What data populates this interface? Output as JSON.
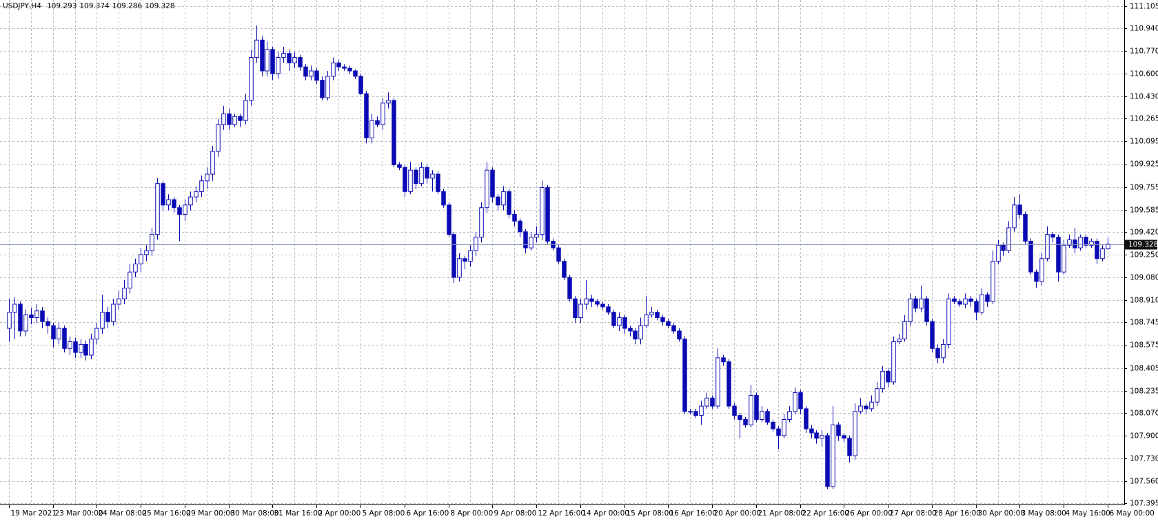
{
  "chart_data": {
    "type": "candlestick",
    "title": "USDJPY,H4",
    "color": "#0a0ab4",
    "grid": true,
    "ylim": [
      107.386,
      111.149
    ],
    "yticks": [
      111.105,
      {
        "value": 110.94,
        "label": "110.940"
      },
      {
        "value": 110.77,
        "label": "110.770"
      },
      {
        "value": 110.6,
        "label": "110.600"
      },
      {
        "value": 110.43,
        "label": "110.430"
      },
      110.265,
      110.095,
      109.925,
      109.755,
      109.585,
      {
        "value": 109.42,
        "label": "109.420"
      },
      {
        "value": 109.25,
        "label": "109.250"
      },
      {
        "value": 109.08,
        "label": "109.080"
      },
      {
        "value": 108.91,
        "label": "108.910"
      },
      108.745,
      108.575,
      108.405,
      108.235,
      {
        "value": 108.07,
        "label": "108.070"
      },
      {
        "value": 107.9,
        "label": "107.900"
      },
      {
        "value": 107.73,
        "label": "107.730"
      },
      {
        "value": 107.56,
        "label": "107.560"
      },
      107.395
    ],
    "categories": [
      "19 Mar 2021",
      null,
      null,
      null,
      null,
      null,
      null,
      null,
      "23 Mar 00:00",
      null,
      null,
      null,
      null,
      null,
      null,
      null,
      "24 Mar 08:00",
      null,
      null,
      null,
      null,
      null,
      null,
      null,
      "25 Mar 16:00",
      null,
      null,
      null,
      null,
      null,
      null,
      null,
      "29 Mar 00:00",
      null,
      null,
      null,
      null,
      null,
      null,
      null,
      "30 Mar 08:00",
      null,
      null,
      null,
      null,
      null,
      null,
      null,
      "31 Mar 16:00",
      null,
      null,
      null,
      null,
      null,
      null,
      null,
      "2 Apr 00:00",
      null,
      null,
      null,
      null,
      null,
      null,
      null,
      "5 Apr 08:00",
      null,
      null,
      null,
      null,
      null,
      null,
      null,
      "6 Apr 16:00",
      null,
      null,
      null,
      null,
      null,
      null,
      null,
      "8 Apr 00:00",
      null,
      null,
      null,
      null,
      null,
      null,
      null,
      "9 Apr 08:00",
      null,
      null,
      null,
      null,
      null,
      null,
      null,
      "12 Apr 16:00",
      null,
      null,
      null,
      null,
      null,
      null,
      null,
      "14 Apr 00:00",
      null,
      null,
      null,
      null,
      null,
      null,
      null,
      "15 Apr 08:00",
      null,
      null,
      null,
      null,
      null,
      null,
      null,
      "16 Apr 16:00",
      null,
      null,
      null,
      null,
      null,
      null,
      null,
      "20 Apr 00:00",
      null,
      null,
      null,
      null,
      null,
      null,
      null,
      "21 Apr 08:00",
      null,
      null,
      null,
      null,
      null,
      null,
      null,
      "22 Apr 16:00",
      null,
      null,
      null,
      null,
      null,
      null,
      null,
      "26 Apr 00:00",
      null,
      null,
      null,
      null,
      null,
      null,
      null,
      "27 Apr 08:00",
      null,
      null,
      null,
      null,
      null,
      null,
      null,
      "28 Apr 16:00",
      null,
      null,
      null,
      null,
      null,
      null,
      null,
      "30 Apr 00:00",
      null,
      null,
      null,
      null,
      null,
      null,
      null,
      "3 May 08:00",
      null,
      null,
      null,
      null,
      null,
      null,
      null,
      "4 May 16:00",
      null,
      null,
      null,
      null,
      null,
      null,
      null,
      "6 May 00:00"
    ],
    "ohlc": [
      [
        108.7,
        108.92,
        108.6,
        108.82
      ],
      [
        108.82,
        108.93,
        108.62,
        108.88
      ],
      [
        108.88,
        108.9,
        108.64,
        108.68
      ],
      [
        108.68,
        108.84,
        108.64,
        108.8
      ],
      [
        108.8,
        108.85,
        108.73,
        108.78
      ],
      [
        108.78,
        108.88,
        108.74,
        108.83
      ],
      [
        108.83,
        108.86,
        108.7,
        108.75
      ],
      [
        108.75,
        108.78,
        108.66,
        108.72
      ],
      [
        108.72,
        108.74,
        108.56,
        108.62
      ],
      [
        108.62,
        108.74,
        108.58,
        108.7
      ],
      [
        108.7,
        108.72,
        108.52,
        108.55
      ],
      [
        108.55,
        108.64,
        108.5,
        108.6
      ],
      [
        108.6,
        108.63,
        108.48,
        108.52
      ],
      [
        108.52,
        108.62,
        108.48,
        108.58
      ],
      [
        108.58,
        108.61,
        108.46,
        108.5
      ],
      [
        108.5,
        108.66,
        108.47,
        108.62
      ],
      [
        108.62,
        108.74,
        108.58,
        108.7
      ],
      [
        108.7,
        108.95,
        108.66,
        108.82
      ],
      [
        108.82,
        108.86,
        108.7,
        108.75
      ],
      [
        108.75,
        108.92,
        108.72,
        108.88
      ],
      [
        108.88,
        108.98,
        108.84,
        108.92
      ],
      [
        108.92,
        109.06,
        108.88,
        109.0
      ],
      [
        109.0,
        109.18,
        108.96,
        109.12
      ],
      [
        109.12,
        109.22,
        109.08,
        109.18
      ],
      [
        109.18,
        109.3,
        109.12,
        109.25
      ],
      [
        109.25,
        109.32,
        109.2,
        109.28
      ],
      [
        109.28,
        109.45,
        109.24,
        109.4
      ],
      [
        109.4,
        109.82,
        109.36,
        109.78
      ],
      [
        109.78,
        109.8,
        109.58,
        109.62
      ],
      [
        109.62,
        109.7,
        109.58,
        109.66
      ],
      [
        109.66,
        109.68,
        109.56,
        109.6
      ],
      [
        109.6,
        109.62,
        109.35,
        109.55
      ],
      [
        109.55,
        109.66,
        109.5,
        109.62
      ],
      [
        109.62,
        109.72,
        109.58,
        109.68
      ],
      [
        109.68,
        109.76,
        109.64,
        109.72
      ],
      [
        109.72,
        109.84,
        109.68,
        109.8
      ],
      [
        109.8,
        109.9,
        109.74,
        109.85
      ],
      [
        109.85,
        110.06,
        109.8,
        110.02
      ],
      [
        110.02,
        110.26,
        109.98,
        110.22
      ],
      [
        110.22,
        110.36,
        110.18,
        110.3
      ],
      [
        110.3,
        110.34,
        110.18,
        110.22
      ],
      [
        110.22,
        110.3,
        110.2,
        110.28
      ],
      [
        110.28,
        110.3,
        110.2,
        110.25
      ],
      [
        110.25,
        110.45,
        110.22,
        110.4
      ],
      [
        110.4,
        110.78,
        110.36,
        110.72
      ],
      [
        110.72,
        110.96,
        110.68,
        110.85
      ],
      [
        110.85,
        110.88,
        110.58,
        110.62
      ],
      [
        110.62,
        110.84,
        110.58,
        110.78
      ],
      [
        110.78,
        110.8,
        110.55,
        110.6
      ],
      [
        110.6,
        110.76,
        110.56,
        110.72
      ],
      [
        110.72,
        110.8,
        110.68,
        110.75
      ],
      [
        110.75,
        110.78,
        110.62,
        110.68
      ],
      [
        110.68,
        110.76,
        110.64,
        110.72
      ],
      [
        110.72,
        110.74,
        110.62,
        110.65
      ],
      [
        110.65,
        110.67,
        110.55,
        110.58
      ],
      [
        110.58,
        110.66,
        110.55,
        110.62
      ],
      [
        110.62,
        110.64,
        110.52,
        110.55
      ],
      [
        110.55,
        110.58,
        110.4,
        110.42
      ],
      [
        110.42,
        110.62,
        110.4,
        110.58
      ],
      [
        110.58,
        110.72,
        110.55,
        110.68
      ],
      [
        110.68,
        110.7,
        110.62,
        110.65
      ],
      [
        110.65,
        110.67,
        110.62,
        110.64
      ],
      [
        110.64,
        110.66,
        110.6,
        110.62
      ],
      [
        110.62,
        110.63,
        110.56,
        110.58
      ],
      [
        110.58,
        110.6,
        110.44,
        110.45
      ],
      [
        110.45,
        110.47,
        110.08,
        110.12
      ],
      [
        110.12,
        110.3,
        110.08,
        110.25
      ],
      [
        110.25,
        110.28,
        110.2,
        110.22
      ],
      [
        110.22,
        110.42,
        110.18,
        110.38
      ],
      [
        110.38,
        110.46,
        110.34,
        110.4
      ],
      [
        110.4,
        110.42,
        109.9,
        109.92
      ],
      [
        109.92,
        109.94,
        109.88,
        109.9
      ],
      [
        109.9,
        109.92,
        109.68,
        109.72
      ],
      [
        109.72,
        109.94,
        109.7,
        109.88
      ],
      [
        109.88,
        109.9,
        109.74,
        109.78
      ],
      [
        109.78,
        109.94,
        109.76,
        109.9
      ],
      [
        109.9,
        109.92,
        109.78,
        109.82
      ],
      [
        109.82,
        109.88,
        109.72,
        109.85
      ],
      [
        109.85,
        109.87,
        109.7,
        109.72
      ],
      [
        109.72,
        109.74,
        109.6,
        109.62
      ],
      [
        109.62,
        109.64,
        109.38,
        109.4
      ],
      [
        109.4,
        109.42,
        109.04,
        109.08
      ],
      [
        109.08,
        109.26,
        109.05,
        109.22
      ],
      [
        109.22,
        109.24,
        109.14,
        109.2
      ],
      [
        109.2,
        109.32,
        109.16,
        109.28
      ],
      [
        109.28,
        109.42,
        109.24,
        109.38
      ],
      [
        109.38,
        109.64,
        109.34,
        109.6
      ],
      [
        109.6,
        109.94,
        109.56,
        109.88
      ],
      [
        109.88,
        109.9,
        109.64,
        109.68
      ],
      [
        109.68,
        109.7,
        109.58,
        109.62
      ],
      [
        109.62,
        109.76,
        109.58,
        109.72
      ],
      [
        109.72,
        109.74,
        109.52,
        109.55
      ],
      [
        109.55,
        109.58,
        109.46,
        109.5
      ],
      [
        109.5,
        109.52,
        109.38,
        109.42
      ],
      [
        109.42,
        109.44,
        109.26,
        109.3
      ],
      [
        109.3,
        109.42,
        109.28,
        109.38
      ],
      [
        109.38,
        109.46,
        109.34,
        109.4
      ],
      [
        109.4,
        109.8,
        109.36,
        109.75
      ],
      [
        109.75,
        109.77,
        109.33,
        109.35
      ],
      [
        109.35,
        109.37,
        109.28,
        109.3
      ],
      [
        109.3,
        109.32,
        109.18,
        109.2
      ],
      [
        109.2,
        109.22,
        109.06,
        109.08
      ],
      [
        109.08,
        109.1,
        108.9,
        108.92
      ],
      [
        108.92,
        108.94,
        108.74,
        108.78
      ],
      [
        108.78,
        108.92,
        108.74,
        108.88
      ],
      [
        108.88,
        109.06,
        108.84,
        108.92
      ],
      [
        108.92,
        108.95,
        108.86,
        108.9
      ],
      [
        108.9,
        108.92,
        108.86,
        108.88
      ],
      [
        108.88,
        108.9,
        108.84,
        108.86
      ],
      [
        108.86,
        108.88,
        108.8,
        108.82
      ],
      [
        108.82,
        108.84,
        108.7,
        108.72
      ],
      [
        108.72,
        108.82,
        108.68,
        108.78
      ],
      [
        108.78,
        108.8,
        108.66,
        108.7
      ],
      [
        108.7,
        108.72,
        108.64,
        108.68
      ],
      [
        108.68,
        108.7,
        108.58,
        108.62
      ],
      [
        108.62,
        108.78,
        108.58,
        108.72
      ],
      [
        108.72,
        108.94,
        108.7,
        108.8
      ],
      [
        108.8,
        108.86,
        108.78,
        108.82
      ],
      [
        108.82,
        108.84,
        108.76,
        108.78
      ],
      [
        108.78,
        108.8,
        108.72,
        108.75
      ],
      [
        108.75,
        108.77,
        108.7,
        108.72
      ],
      [
        108.72,
        108.74,
        108.66,
        108.68
      ],
      [
        108.68,
        108.7,
        108.6,
        108.62
      ],
      [
        108.62,
        108.64,
        108.06,
        108.08
      ],
      [
        108.08,
        108.1,
        108.06,
        108.08
      ],
      [
        108.08,
        108.1,
        108.03,
        108.05
      ],
      [
        108.05,
        108.16,
        107.98,
        108.12
      ],
      [
        108.12,
        108.22,
        108.1,
        108.18
      ],
      [
        108.18,
        108.2,
        108.1,
        108.12
      ],
      [
        108.12,
        108.55,
        108.1,
        108.48
      ],
      [
        108.48,
        108.5,
        108.42,
        108.45
      ],
      [
        108.45,
        108.47,
        108.1,
        108.12
      ],
      [
        108.12,
        108.14,
        108.02,
        108.05
      ],
      [
        108.05,
        108.07,
        107.88,
        108.02
      ],
      [
        108.02,
        108.04,
        107.96,
        107.98
      ],
      [
        107.98,
        108.28,
        107.96,
        108.2
      ],
      [
        108.2,
        108.22,
        108.0,
        108.02
      ],
      [
        108.02,
        108.12,
        108.0,
        108.08
      ],
      [
        108.08,
        108.1,
        107.98,
        108.0
      ],
      [
        108.0,
        108.02,
        107.93,
        107.95
      ],
      [
        107.95,
        107.97,
        107.8,
        107.9
      ],
      [
        107.9,
        108.06,
        107.88,
        108.02
      ],
      [
        108.02,
        108.12,
        108.0,
        108.08
      ],
      [
        108.08,
        108.26,
        108.06,
        108.22
      ],
      [
        108.22,
        108.24,
        108.06,
        108.1
      ],
      [
        108.1,
        108.12,
        107.92,
        107.95
      ],
      [
        107.95,
        107.98,
        107.88,
        107.92
      ],
      [
        107.92,
        107.94,
        107.84,
        107.88
      ],
      [
        107.88,
        107.94,
        107.82,
        107.9
      ],
      [
        107.9,
        107.92,
        107.5,
        107.52
      ],
      [
        107.52,
        108.12,
        107.5,
        107.98
      ],
      [
        107.98,
        108.0,
        107.86,
        107.9
      ],
      [
        107.9,
        107.92,
        107.85,
        107.88
      ],
      [
        107.88,
        107.9,
        107.7,
        107.75
      ],
      [
        107.75,
        108.14,
        107.72,
        108.08
      ],
      [
        108.08,
        108.18,
        108.06,
        108.12
      ],
      [
        108.12,
        108.14,
        108.06,
        108.1
      ],
      [
        108.1,
        108.2,
        108.08,
        108.15
      ],
      [
        108.15,
        108.3,
        108.12,
        108.25
      ],
      [
        108.25,
        108.42,
        108.22,
        108.38
      ],
      [
        108.38,
        108.4,
        108.26,
        108.3
      ],
      [
        108.3,
        108.64,
        108.28,
        108.6
      ],
      [
        108.6,
        108.66,
        108.58,
        108.62
      ],
      [
        108.62,
        108.8,
        108.6,
        108.75
      ],
      [
        108.75,
        108.96,
        108.72,
        108.92
      ],
      [
        108.92,
        108.94,
        108.82,
        108.85
      ],
      [
        108.85,
        109.02,
        108.82,
        108.92
      ],
      [
        108.92,
        108.94,
        108.72,
        108.75
      ],
      [
        108.75,
        108.77,
        108.52,
        108.55
      ],
      [
        108.55,
        108.58,
        108.44,
        108.48
      ],
      [
        108.48,
        108.62,
        108.44,
        108.58
      ],
      [
        108.58,
        108.96,
        108.55,
        108.92
      ],
      [
        108.92,
        108.94,
        108.88,
        108.9
      ],
      [
        108.9,
        108.92,
        108.86,
        108.88
      ],
      [
        108.88,
        108.96,
        108.85,
        108.92
      ],
      [
        108.92,
        108.94,
        108.86,
        108.9
      ],
      [
        108.9,
        108.92,
        108.76,
        108.82
      ],
      [
        108.82,
        109.0,
        108.8,
        108.95
      ],
      [
        108.95,
        108.97,
        108.86,
        108.9
      ],
      [
        108.9,
        109.28,
        108.88,
        109.2
      ],
      [
        109.2,
        109.36,
        109.18,
        109.32
      ],
      [
        109.32,
        109.34,
        109.24,
        109.28
      ],
      [
        109.28,
        109.5,
        109.26,
        109.45
      ],
      [
        109.45,
        109.68,
        109.42,
        109.62
      ],
      [
        109.62,
        109.7,
        109.52,
        109.55
      ],
      [
        109.55,
        109.57,
        109.33,
        109.35
      ],
      [
        109.35,
        109.37,
        109.1,
        109.12
      ],
      [
        109.12,
        109.14,
        109.0,
        109.05
      ],
      [
        109.05,
        109.26,
        109.02,
        109.22
      ],
      [
        109.22,
        109.46,
        109.2,
        109.4
      ],
      [
        109.4,
        109.42,
        109.34,
        109.38
      ],
      [
        109.38,
        109.4,
        109.05,
        109.12
      ],
      [
        109.12,
        109.36,
        109.1,
        109.32
      ],
      [
        109.32,
        109.4,
        109.3,
        109.36
      ],
      [
        109.36,
        109.45,
        109.26,
        109.3
      ],
      [
        109.3,
        109.4,
        109.28,
        109.38
      ],
      [
        109.38,
        109.4,
        109.3,
        109.32
      ],
      [
        109.32,
        109.37,
        109.3,
        109.35
      ],
      [
        109.35,
        109.37,
        109.18,
        109.22
      ],
      [
        109.22,
        109.32,
        109.2,
        109.293
      ],
      [
        109.293,
        109.374,
        109.286,
        109.328
      ]
    ]
  }
}
